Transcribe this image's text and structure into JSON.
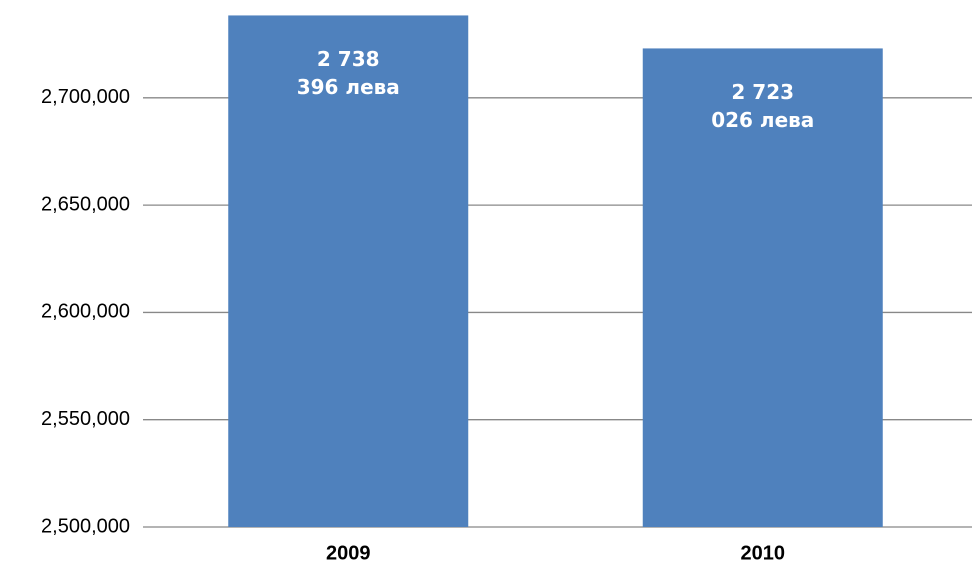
{
  "chart_data": {
    "type": "bar",
    "categories": [
      "2009",
      "2010"
    ],
    "values": [
      2738396,
      2723026
    ],
    "value_labels": [
      "2 738 396 лева",
      "2 723 026 лева"
    ],
    "color": "#4f81bd",
    "ylim": [
      2500000,
      2740000
    ],
    "yticks": [
      {
        "value": 2500000,
        "label": "2,500,000"
      },
      {
        "value": 2550000,
        "label": "2,550,000"
      },
      {
        "value": 2600000,
        "label": "2,600,000"
      },
      {
        "value": 2650000,
        "label": "2,650,000"
      },
      {
        "value": 2700000,
        "label": "2,700,000"
      }
    ],
    "grid": true
  }
}
